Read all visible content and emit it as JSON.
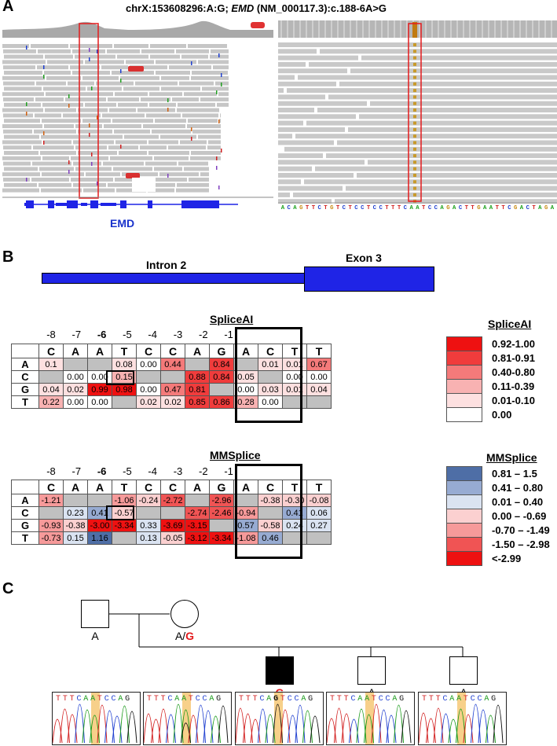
{
  "panelA": {
    "letter": "A",
    "title_prefix": "chrX:153608296:A:G; ",
    "title_gene": "EMD",
    "title_suffix": " (NM_000117.3):c.188-6A>G",
    "gene_label": "EMD",
    "reference_sequence": "ACAGTTCTGTCTCCTCCTTTCAATCCAGACTTGAATTCGACTAGA"
  },
  "panelB": {
    "letter": "B",
    "intron_label": "Intron 2",
    "exon_label": "Exon 3",
    "positions": [
      "-8",
      "-7",
      "-6",
      "-5",
      "-4",
      "-3",
      "-2",
      "-1",
      "",
      "",
      "",
      ""
    ],
    "bold_position": "-6",
    "ref_bases": [
      "C",
      "A",
      "A",
      "T",
      "C",
      "C",
      "A",
      "G",
      "A",
      "C",
      "T",
      "T"
    ],
    "alt_bases": [
      "A",
      "C",
      "G",
      "T"
    ],
    "spliceai": {
      "title": "SpliceAI",
      "rows": [
        [
          "0.1",
          "",
          "",
          "0.08",
          "0.00",
          "0.44",
          "",
          "0.84",
          "",
          "0.01",
          "0.01",
          "0.67"
        ],
        [
          "",
          "0.00",
          "0.00",
          "0.15",
          "",
          "",
          "0.88",
          "0.84",
          "0.05",
          "",
          "0.00",
          "0.00"
        ],
        [
          "0.04",
          "0.02",
          "0.99",
          "0.98",
          "0.00",
          "0.47",
          "0.81",
          "",
          "0.00",
          "0.03",
          "0.01",
          "0.04"
        ],
        [
          "0.22",
          "0.00",
          "0.00",
          "",
          "0.02",
          "0.02",
          "0.85",
          "0.86",
          "0.28",
          "0.00",
          "",
          ""
        ]
      ],
      "legend": [
        {
          "label": "0.92-1.00",
          "color": "#ee1111"
        },
        {
          "label": "0.81-0.91",
          "color": "#f03c3c"
        },
        {
          "label": "0.40-0.80",
          "color": "#f47a7a"
        },
        {
          "label": "0.11-0.39",
          "color": "#f8b2b2"
        },
        {
          "label": "0.01-0.10",
          "color": "#fde0e0"
        },
        {
          "label": "0.00",
          "color": "#ffffff"
        }
      ]
    },
    "mmsplice": {
      "title": "MMSplice",
      "rows": [
        [
          "-1.21",
          "",
          "",
          "-1.06",
          "-0.24",
          "-2.72",
          "",
          "-2.96",
          "",
          "-0.38",
          "-0.30",
          "-0.08"
        ],
        [
          "",
          "0.23",
          "0.41",
          "-0.57",
          "",
          "",
          "-2.74",
          "-2.46",
          "-0.94",
          "",
          "0.41",
          "0.06"
        ],
        [
          "-0.93",
          "-0.38",
          "-3.00",
          "-3.34",
          "0.33",
          "-3.69",
          "-3.15",
          "",
          "0.57",
          "-0.58",
          "0.24",
          "0.27"
        ],
        [
          "-0.73",
          "0.15",
          "1.16",
          "",
          "0.13",
          "-0.05",
          "-3.12",
          "-3.34",
          "-1.08",
          "0.46",
          "",
          ""
        ]
      ],
      "legend": [
        {
          "label": "0.81 – 1.5",
          "color": "#4e6ea6"
        },
        {
          "label": "0.41 – 0.80",
          "color": "#97abd2"
        },
        {
          "label": "0.01 – 0.40",
          "color": "#dae3f1"
        },
        {
          "label": "0.00 – -0.69",
          "color": "#fbd0d0"
        },
        {
          "label": "-0.70 – -1.49",
          "color": "#f69a9a"
        },
        {
          "label": "-1.50 – -2.98",
          "color": "#f05454"
        },
        {
          "label": "<-2.99",
          "color": "#ee1111"
        }
      ]
    }
  },
  "panelC": {
    "letter": "C",
    "father_genotype": "A",
    "mother_genotype_ref": "A/",
    "mother_genotype_alt": "G",
    "proband_genotype": "G",
    "sibling1_genotype": "A",
    "sibling2_genotype": "A",
    "chromatograms": [
      {
        "bases": "TTTCAATCCAG"
      },
      {
        "bases": "TTTCAATCCAG"
      },
      {
        "bases": "TTTCAGTCCAG"
      },
      {
        "bases": "TTTCAATCCAG"
      },
      {
        "bases": "TTTCAATCCAG"
      }
    ]
  }
}
